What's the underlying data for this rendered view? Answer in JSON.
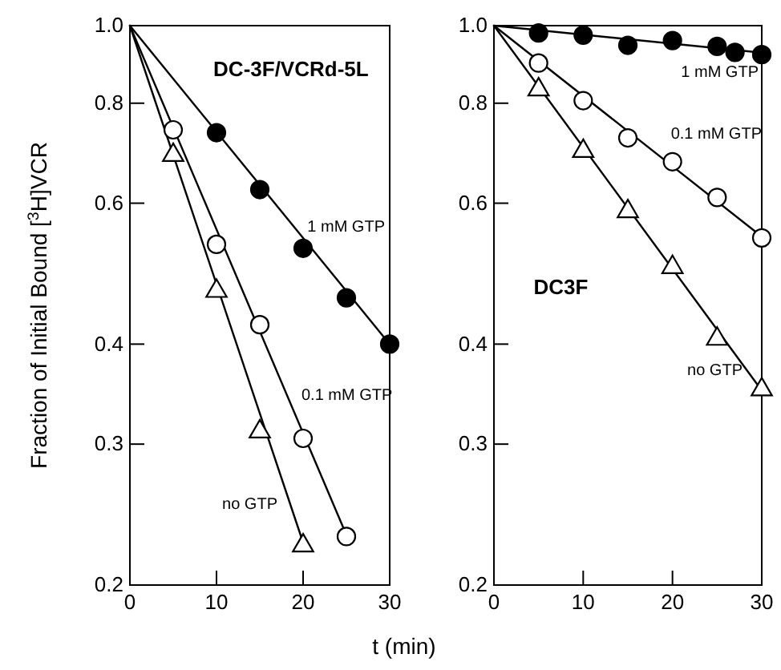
{
  "chart_data": [
    {
      "type": "scatter",
      "annotations": [
        "DC-3F/VCRd-5L"
      ],
      "ylabel": "Fraction of Initial Bound [$^{3}$H]VCR",
      "log": "y",
      "xlim": [
        0,
        30
      ],
      "xticks": [
        0,
        10,
        20,
        30
      ],
      "ylim": [
        0.2,
        1
      ],
      "yticks": [
        0.2,
        0.3,
        0.4,
        0.6,
        0.8,
        {
          "value": 1,
          "label": "1.0"
        }
      ],
      "grid": false,
      "series": [
        {
          "type": "line",
          "color": "#000000",
          "x": [
            0,
            30
          ],
          "values": [
            1,
            0.4
          ],
          "marker": "none"
        },
        {
          "type": "line",
          "color": "#000000",
          "x": [
            0,
            25
          ],
          "values": [
            1,
            0.231
          ],
          "marker": "none"
        },
        {
          "type": "line",
          "color": "#000000",
          "x": [
            0,
            20
          ],
          "values": [
            1,
            0.226
          ],
          "marker": "none"
        },
        {
          "name": "1 mM GTP",
          "color": "#000000",
          "marker": "circle",
          "x": [
            10,
            15,
            20,
            25,
            30
          ],
          "values": [
            0.735,
            0.624,
            0.527,
            0.457,
            0.4
          ]
        },
        {
          "name": "0.1 mM GTP",
          "color": "#ffffff",
          "marker": "circle",
          "x": [
            5,
            10,
            15,
            20,
            25
          ],
          "values": [
            0.741,
            0.533,
            0.423,
            0.305,
            0.23
          ]
        },
        {
          "name": "no GTP",
          "color": "#ffffff",
          "marker": "triangle",
          "x": [
            5,
            10,
            15,
            20
          ],
          "values": [
            0.689,
            0.466,
            0.311,
            0.224
          ]
        }
      ]
    },
    {
      "type": "scatter",
      "annotations": [
        "DC3F"
      ],
      "xlabel": "t (min)",
      "log": "y",
      "xlim": [
        0,
        30
      ],
      "xticks": [
        0,
        10,
        20,
        30
      ],
      "ylim": [
        0.2,
        1
      ],
      "yticks": [
        0.2,
        0.3,
        0.4,
        0.6,
        0.8,
        {
          "value": 1,
          "label": "1.0"
        }
      ],
      "grid": false,
      "series": [
        {
          "type": "line",
          "color": "#000000",
          "x": [
            0,
            30
          ],
          "values": [
            1,
            0.925
          ],
          "marker": "none"
        },
        {
          "type": "line",
          "color": "#000000",
          "x": [
            0,
            30
          ],
          "values": [
            1,
            0.545
          ],
          "marker": "none"
        },
        {
          "type": "line",
          "color": "#000000",
          "x": [
            0,
            30
          ],
          "values": [
            1,
            0.35
          ],
          "marker": "none"
        },
        {
          "name": "1 mM GTP",
          "color": "#000000",
          "marker": "circle",
          "x": [
            5,
            10,
            15,
            20,
            25,
            27,
            30
          ],
          "values": [
            0.979,
            0.973,
            0.945,
            0.958,
            0.942,
            0.926,
            0.92
          ]
        },
        {
          "name": "0.1 mM GTP",
          "color": "#ffffff",
          "marker": "circle",
          "x": [
            5,
            10,
            15,
            20,
            25,
            30
          ],
          "values": [
            0.898,
            0.806,
            0.724,
            0.676,
            0.61,
            0.543
          ]
        },
        {
          "name": "no GTP",
          "color": "#ffffff",
          "marker": "triangle",
          "x": [
            5,
            10,
            15,
            20,
            25,
            30
          ],
          "values": [
            0.832,
            0.697,
            0.586,
            0.499,
            0.406,
            0.351
          ]
        }
      ]
    }
  ]
}
